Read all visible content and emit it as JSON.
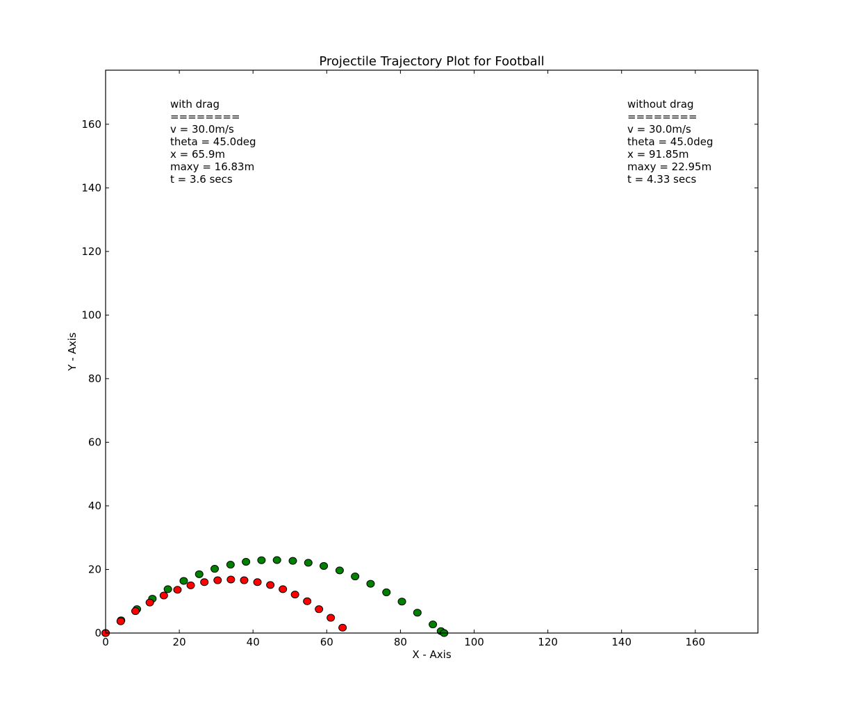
{
  "chart_data": {
    "type": "scatter",
    "title": "Projectile Trajectory Plot for Football",
    "xlabel": "X - Axis",
    "ylabel": "Y - Axis",
    "xlim": [
      0,
      177
    ],
    "ylim": [
      0,
      177
    ],
    "xticks": [
      0,
      20,
      40,
      60,
      80,
      100,
      120,
      140,
      160
    ],
    "yticks": [
      0,
      20,
      40,
      60,
      80,
      100,
      120,
      140,
      160
    ],
    "grid": false,
    "series": [
      {
        "color": "#008000",
        "x": [
          0,
          4.2,
          8.5,
          12.7,
          16.9,
          21.2,
          25.4,
          29.6,
          33.9,
          38.1,
          42.3,
          46.5,
          50.8,
          55.0,
          59.2,
          63.5,
          67.7,
          71.9,
          76.2,
          80.4,
          84.6,
          88.8,
          91.0,
          91.85
        ],
        "y": [
          0,
          4.0,
          7.5,
          10.8,
          13.8,
          16.4,
          18.5,
          20.2,
          21.5,
          22.4,
          22.9,
          22.95,
          22.7,
          22.1,
          21.1,
          19.7,
          17.8,
          15.5,
          12.8,
          9.9,
          6.4,
          2.7,
          0.6,
          0
        ]
      },
      {
        "color": "#ff0000",
        "x": [
          0,
          4.1,
          8.1,
          12.0,
          15.8,
          19.5,
          23.1,
          26.8,
          30.4,
          34.0,
          37.6,
          41.2,
          44.7,
          48.1,
          51.4,
          54.7,
          57.9,
          61.1,
          64.3
        ],
        "y": [
          0,
          3.7,
          6.9,
          9.6,
          11.8,
          13.6,
          15.0,
          16.0,
          16.6,
          16.83,
          16.6,
          16.0,
          15.1,
          13.8,
          12.1,
          10.0,
          7.5,
          4.8,
          1.7
        ]
      }
    ],
    "annotations": [
      {
        "lines": [
          "with drag",
          "========",
          "v = 30.0m/s",
          "theta = 45.0deg",
          "x = 65.9m",
          "maxy = 16.83m",
          "t = 3.6 secs"
        ]
      },
      {
        "lines": [
          "without drag",
          "========",
          "v = 30.0m/s",
          "theta = 45.0deg",
          "x = 91.85m",
          "maxy = 22.95m",
          "t = 4.33 secs"
        ]
      }
    ]
  }
}
